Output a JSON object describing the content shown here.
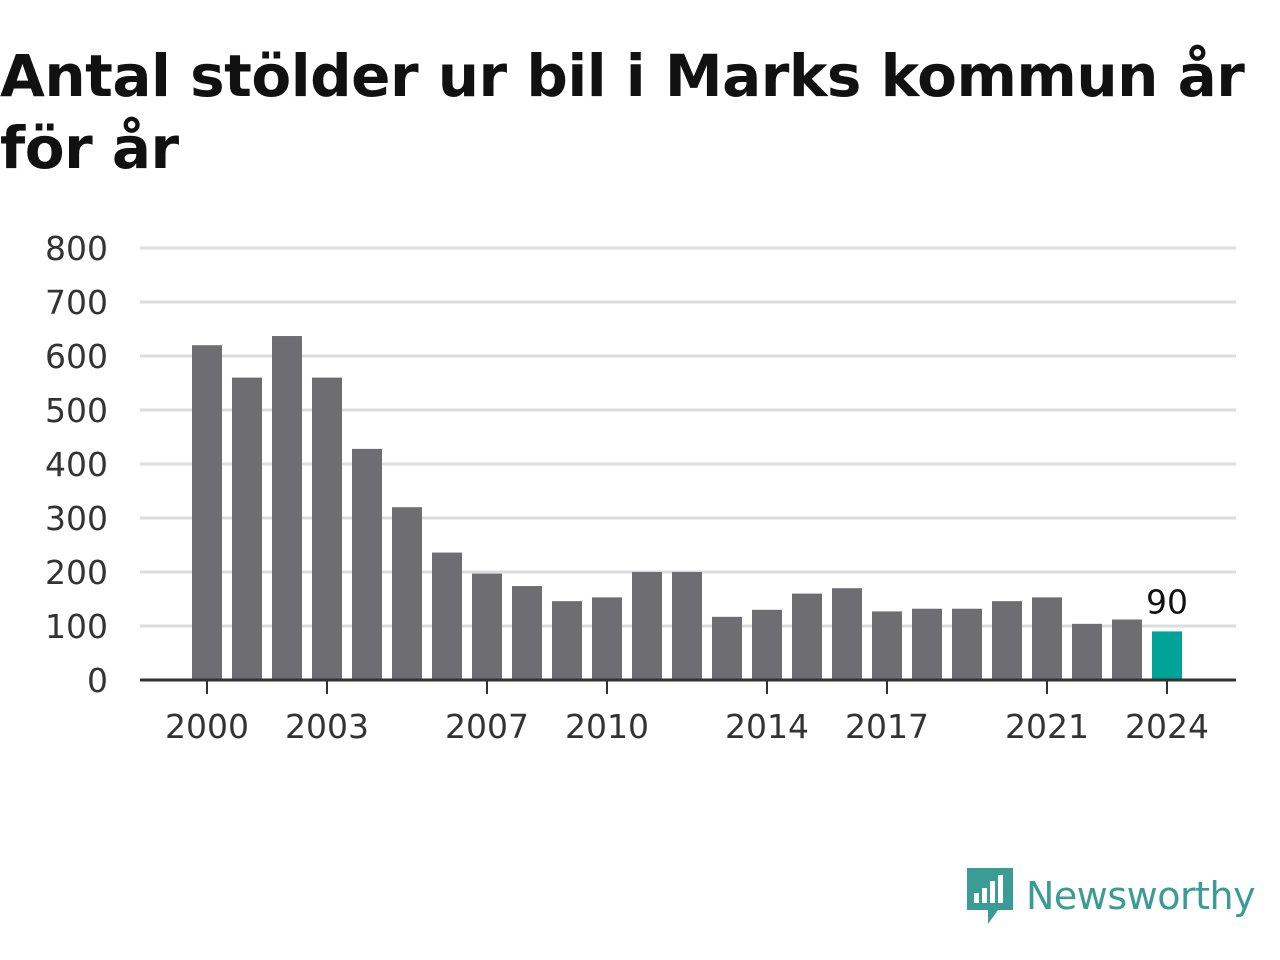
{
  "title": "Antal stölder ur bil i Marks kommun år för år",
  "brand": {
    "name": "Newsworthy",
    "logo_icon": "newsworthy-logo-icon"
  },
  "colors": {
    "bar": "#6e6d72",
    "highlight": "#00a398",
    "grid": "#dddddd",
    "axis": "#333333",
    "brand": "#3a9c94"
  },
  "chart_data": {
    "type": "bar",
    "title": "Antal stölder ur bil i Marks kommun år för år",
    "xlabel": "",
    "ylabel": "",
    "categories": [
      "2000",
      "2001",
      "2002",
      "2003",
      "2004",
      "2005",
      "2006",
      "2007",
      "2008",
      "2009",
      "2010",
      "2011",
      "2012",
      "2013",
      "2014",
      "2015",
      "2016",
      "2017",
      "2018",
      "2019",
      "2020",
      "2021",
      "2022",
      "2023",
      "2024"
    ],
    "values": [
      620,
      560,
      637,
      560,
      428,
      320,
      236,
      197,
      174,
      146,
      153,
      200,
      200,
      117,
      130,
      160,
      170,
      127,
      132,
      132,
      146,
      153,
      104,
      112,
      90
    ],
    "ylim": [
      0,
      800
    ],
    "yticks": [
      "0",
      "100",
      "200",
      "300",
      "400",
      "500",
      "600",
      "700",
      "800"
    ],
    "xtick_labels": [
      "2000",
      "2003",
      "2007",
      "2010",
      "2014",
      "2017",
      "2021",
      "2024"
    ],
    "highlight": {
      "category": "2024",
      "label": "90"
    },
    "grid": true,
    "legend": "none"
  }
}
